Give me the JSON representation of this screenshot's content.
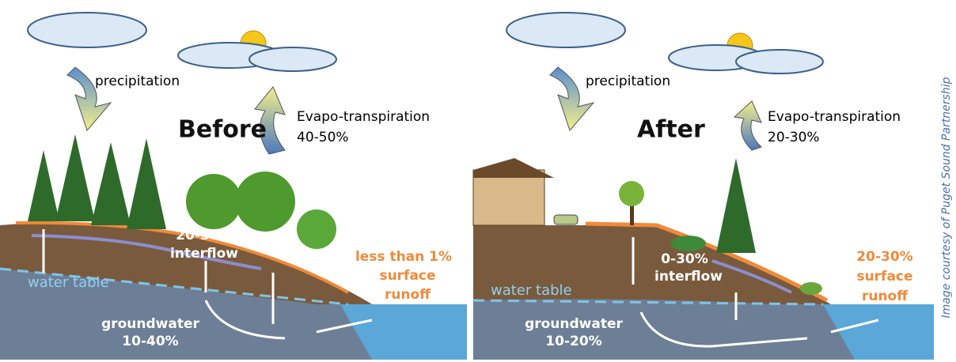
{
  "panels": [
    {
      "title": "Before",
      "precipitation": "precipitation",
      "evapotranspiration": {
        "label": "Evapo-transpiration",
        "percent": "40-50%"
      },
      "interflow": {
        "percent": "20-30%",
        "label": "interflow"
      },
      "water_table": "water table",
      "runoff": {
        "percent": "less than 1%",
        "line2": "surface",
        "line3": "runoff"
      },
      "groundwater": {
        "label": "groundwater",
        "percent": "10-40%"
      }
    },
    {
      "title": "After",
      "precipitation": "precipitation",
      "evapotranspiration": {
        "label": "Evapo-transpiration",
        "percent": "20-30%"
      },
      "interflow": {
        "percent": "0-30%",
        "label": "interflow"
      },
      "water_table": "water table",
      "runoff": {
        "percent": "20-30%",
        "line2": "surface",
        "line3": "runoff"
      },
      "groundwater": {
        "label": "groundwater",
        "percent": "10-20%"
      }
    }
  ],
  "credit": "Image courtesy of Puget Sound Partnership"
}
